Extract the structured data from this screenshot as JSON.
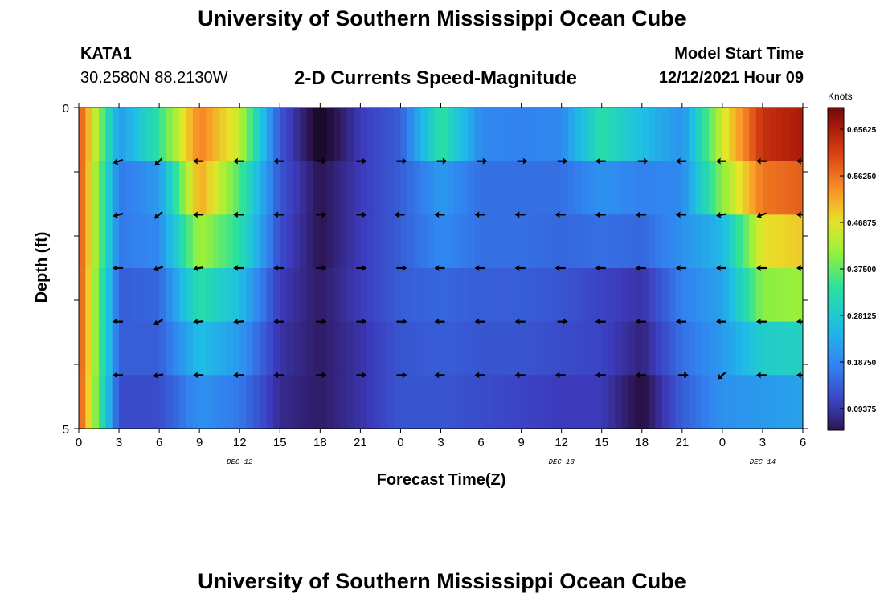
{
  "header": {
    "title": "University of Southern Mississippi Ocean Cube",
    "station": "KATA1",
    "coords": "30.2580N  88.2130W",
    "subtitle": "2-D Currents Speed-Magnitude",
    "start_label": "Model Start Time",
    "start_value": "12/12/2021 Hour 09"
  },
  "footer": {
    "next_title": "University of Southern Mississippi Ocean Cube"
  },
  "chart_data": {
    "type": "heatmap",
    "title": "2-D Currents Speed-Magnitude",
    "xlabel": "Forecast Time(Z)",
    "ylabel": "Depth (ft)",
    "x_tick_labels": [
      "0",
      "3",
      "6",
      "9",
      "12",
      "15",
      "18",
      "21",
      "0",
      "3",
      "6",
      "9",
      "12",
      "15",
      "18",
      "21",
      "0",
      "3",
      "6"
    ],
    "day_labels": [
      {
        "label": "DEC 12",
        "x_hours": 12
      },
      {
        "label": "DEC 13",
        "x_hours": 36
      },
      {
        "label": "DEC 14",
        "x_hours": 51
      }
    ],
    "x_range_hours": [
      0,
      54
    ],
    "y_range": [
      0,
      5
    ],
    "y_tick_labels": [
      "0",
      "5"
    ],
    "colorbar": {
      "units": "Knots",
      "ticks": [
        "0.65625",
        "0.56250",
        "0.46875",
        "0.37500",
        "0.28125",
        "0.18750",
        "0.09375"
      ],
      "range": [
        0.05,
        0.7
      ]
    },
    "depth_rows": [
      "0-1 ft",
      "1-2 ft",
      "2-3 ft",
      "3-4 ft",
      "4-5 ft",
      "5 ft"
    ],
    "speed_knots_by_time": [
      {
        "t": 0,
        "speed": [
          0.6,
          0.6,
          0.6,
          0.6,
          0.6,
          0.6
        ]
      },
      {
        "t": 3,
        "speed": [
          0.21,
          0.17,
          0.17,
          0.14,
          0.14,
          0.12
        ]
      },
      {
        "t": 6,
        "speed": [
          0.34,
          0.21,
          0.19,
          0.15,
          0.14,
          0.12
        ]
      },
      {
        "t": 9,
        "speed": [
          0.55,
          0.52,
          0.42,
          0.33,
          0.26,
          0.2
        ]
      },
      {
        "t": 12,
        "speed": [
          0.44,
          0.36,
          0.33,
          0.26,
          0.21,
          0.17
        ]
      },
      {
        "t": 15,
        "speed": [
          0.13,
          0.13,
          0.12,
          0.1,
          0.09,
          0.08
        ]
      },
      {
        "t": 18,
        "speed": [
          0.02,
          0.05,
          0.05,
          0.06,
          0.06,
          0.06
        ]
      },
      {
        "t": 21,
        "speed": [
          0.1,
          0.1,
          0.1,
          0.1,
          0.09,
          0.09
        ]
      },
      {
        "t": 24,
        "speed": [
          0.14,
          0.14,
          0.14,
          0.14,
          0.13,
          0.13
        ]
      },
      {
        "t": 27,
        "speed": [
          0.34,
          0.21,
          0.19,
          0.15,
          0.14,
          0.13
        ]
      },
      {
        "t": 30,
        "speed": [
          0.19,
          0.16,
          0.16,
          0.14,
          0.13,
          0.12
        ]
      },
      {
        "t": 33,
        "speed": [
          0.18,
          0.16,
          0.16,
          0.14,
          0.13,
          0.11
        ]
      },
      {
        "t": 36,
        "speed": [
          0.19,
          0.16,
          0.15,
          0.13,
          0.12,
          0.1
        ]
      },
      {
        "t": 39,
        "speed": [
          0.33,
          0.2,
          0.16,
          0.11,
          0.11,
          0.1
        ]
      },
      {
        "t": 42,
        "speed": [
          0.26,
          0.18,
          0.15,
          0.09,
          0.07,
          0.04
        ]
      },
      {
        "t": 45,
        "speed": [
          0.2,
          0.19,
          0.2,
          0.18,
          0.16,
          0.14
        ]
      },
      {
        "t": 48,
        "speed": [
          0.45,
          0.4,
          0.25,
          0.22,
          0.21,
          0.2
        ]
      },
      {
        "t": 51,
        "speed": [
          0.63,
          0.56,
          0.47,
          0.4,
          0.29,
          0.21
        ]
      },
      {
        "t": 54,
        "speed": [
          0.66,
          0.58,
          0.49,
          0.41,
          0.3,
          0.22
        ]
      }
    ],
    "arrow_rows": [
      {
        "depth_index": 0,
        "x_hours": [
          3,
          6,
          9,
          12,
          15,
          18,
          21,
          24,
          27,
          30,
          33,
          36,
          39,
          42,
          45,
          48,
          51,
          54
        ],
        "angles": [
          200,
          225,
          180,
          180,
          180,
          0,
          0,
          0,
          0,
          0,
          0,
          0,
          180,
          0,
          180,
          180,
          180,
          180
        ]
      },
      {
        "depth_index": 1,
        "x_hours": [
          3,
          6,
          9,
          12,
          15,
          18,
          21,
          24,
          27,
          30,
          33,
          36,
          39,
          42,
          45,
          48,
          51,
          54
        ],
        "angles": [
          195,
          220,
          180,
          180,
          180,
          0,
          0,
          180,
          180,
          180,
          180,
          180,
          180,
          180,
          180,
          190,
          200,
          180
        ]
      },
      {
        "depth_index": 2,
        "x_hours": [
          3,
          6,
          9,
          12,
          15,
          18,
          21,
          24,
          27,
          30,
          33,
          36,
          39,
          42,
          45,
          48,
          51,
          54
        ],
        "angles": [
          180,
          200,
          190,
          180,
          180,
          0,
          0,
          0,
          180,
          180,
          180,
          180,
          180,
          180,
          180,
          180,
          180,
          180
        ]
      },
      {
        "depth_index": 3,
        "x_hours": [
          3,
          6,
          9,
          12,
          15,
          18,
          21,
          24,
          27,
          30,
          33,
          36,
          39,
          42,
          45,
          48,
          51,
          54
        ],
        "angles": [
          180,
          210,
          185,
          185,
          180,
          0,
          0,
          0,
          180,
          180,
          180,
          0,
          180,
          180,
          180,
          180,
          180,
          180
        ]
      },
      {
        "depth_index": 4,
        "x_hours": [
          3,
          6,
          9,
          12,
          15,
          18,
          21,
          24,
          27,
          30,
          33,
          36,
          39,
          42,
          45,
          48,
          51,
          54
        ],
        "angles": [
          180,
          190,
          180,
          180,
          180,
          0,
          0,
          0,
          180,
          180,
          180,
          180,
          180,
          180,
          0,
          220,
          180,
          180
        ]
      }
    ]
  }
}
